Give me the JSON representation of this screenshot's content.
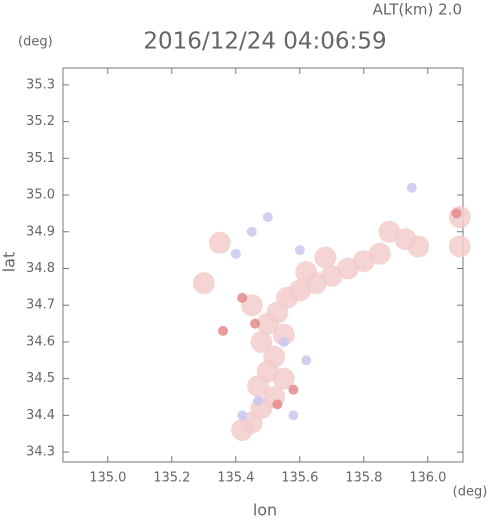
{
  "chart_data": {
    "type": "scatter",
    "header": "ALT(km) 2.0",
    "title": "2016/12/24 04:06:59",
    "y_unit": "(deg)",
    "x_unit": "(deg)",
    "y_label": "lat",
    "x_label": "lon",
    "xlim": [
      134.86,
      136.11
    ],
    "ylim": [
      34.273,
      35.346
    ],
    "xticks": [
      {
        "value": 135,
        "label": "135.0"
      },
      135.2,
      135.4,
      135.6,
      135.8,
      {
        "value": 136,
        "label": "136.0"
      }
    ],
    "yticks": [
      34.3,
      34.4,
      34.5,
      34.6,
      34.7,
      34.8,
      34.9,
      {
        "value": 35,
        "label": "35.0"
      },
      35.1,
      35.2,
      35.3
    ],
    "series": [
      {
        "color": "#f3cdcd",
        "x": [
          135.88,
          135.93,
          135.97,
          135.85,
          135.8,
          135.75,
          135.7,
          135.65,
          135.6,
          135.56,
          135.62,
          135.68,
          135.53,
          135.5,
          135.55,
          135.48,
          135.52,
          135.5,
          135.47,
          135.52,
          135.48,
          135.45,
          135.42,
          135.55,
          135.45,
          136.1,
          136.1,
          135.35,
          135.3
        ],
        "values": [
          34.9,
          34.88,
          34.86,
          34.84,
          34.82,
          34.8,
          34.78,
          34.76,
          34.74,
          34.72,
          34.79,
          34.83,
          34.68,
          34.65,
          34.62,
          34.6,
          34.56,
          34.52,
          34.48,
          34.45,
          34.42,
          34.38,
          34.36,
          34.5,
          34.7,
          34.94,
          34.86,
          34.87,
          34.76
        ]
      },
      {
        "color": "#c8c8f0",
        "x": [
          135.5,
          135.45,
          135.6,
          135.55,
          135.47,
          135.58,
          135.95,
          135.42,
          135.4,
          135.62
        ],
        "values": [
          34.94,
          34.9,
          34.85,
          34.6,
          34.44,
          34.4,
          35.02,
          34.4,
          34.84,
          34.55
        ]
      },
      {
        "color": "#e48a8a",
        "x": [
          135.46,
          135.53,
          135.42,
          135.36,
          136.09,
          135.58
        ],
        "values": [
          34.65,
          34.43,
          34.72,
          34.63,
          34.95,
          34.47
        ]
      }
    ]
  }
}
